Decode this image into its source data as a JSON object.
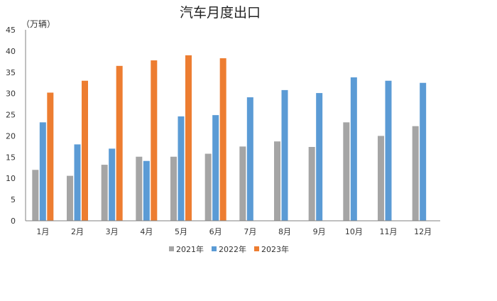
{
  "chart_data": {
    "type": "bar",
    "title": "汽车月度出口",
    "ylabel": "（万辆）",
    "xlabel": "",
    "ylim": [
      0,
      45
    ],
    "yticks": [
      0,
      5,
      10,
      15,
      20,
      25,
      30,
      35,
      40,
      45
    ],
    "grid": false,
    "legend_position": "bottom",
    "categories": [
      "1月",
      "2月",
      "3月",
      "4月",
      "5月",
      "6月",
      "7月",
      "8月",
      "9月",
      "10月",
      "11月",
      "12月"
    ],
    "series": [
      {
        "name": "2021年",
        "color": "#a5a5a5",
        "values": [
          12.0,
          10.6,
          13.2,
          15.1,
          15.1,
          15.8,
          17.5,
          18.7,
          17.4,
          23.2,
          20.0,
          22.3
        ]
      },
      {
        "name": "2022年",
        "color": "#5b9bd5",
        "values": [
          23.2,
          18.0,
          17.0,
          14.1,
          24.6,
          24.9,
          29.1,
          30.8,
          30.1,
          33.8,
          33.0,
          32.5
        ]
      },
      {
        "name": "2023年",
        "color": "#ed7d31",
        "values": [
          30.2,
          33.0,
          36.5,
          37.8,
          39.0,
          38.3,
          null,
          null,
          null,
          null,
          null,
          null
        ]
      }
    ]
  }
}
